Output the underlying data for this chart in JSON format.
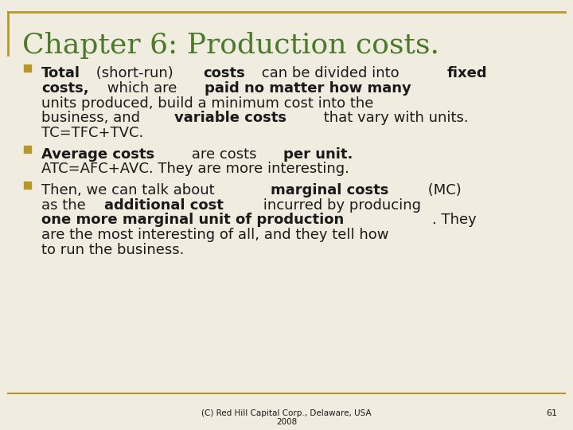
{
  "title": "Chapter 6: Production costs.",
  "title_color": "#4B7A2B",
  "title_fontsize": 26,
  "bg_color": "#F0EDE0",
  "border_color": "#B8972A",
  "bullet_color": "#B8972A",
  "text_color": "#1A1A1A",
  "footer_text": "(C) Red Hill Capital Corp., Delaware, USA\n2008",
  "page_number": "61",
  "bullets": [
    {
      "segments": [
        {
          "text": "Total",
          "bold": true
        },
        {
          "text": " (short-run) ",
          "bold": false
        },
        {
          "text": "costs",
          "bold": true
        },
        {
          "text": " can be divided into ",
          "bold": false
        },
        {
          "text": "fixed\ncosts,",
          "bold": true
        },
        {
          "text": " which are ",
          "bold": false
        },
        {
          "text": "paid no matter how many",
          "bold": true
        },
        {
          "text": "\nunits produced, build a minimum cost into the\nbusiness, and ",
          "bold": false
        },
        {
          "text": "variable costs",
          "bold": true
        },
        {
          "text": " that vary with units.\nTC=TFC+TVC.",
          "bold": false
        }
      ]
    },
    {
      "segments": [
        {
          "text": "Average costs",
          "bold": true
        },
        {
          "text": " are costs ",
          "bold": false
        },
        {
          "text": "per unit.",
          "bold": true
        },
        {
          "text": "\nATC=AFC+AVC. They are more interesting.",
          "bold": false
        }
      ]
    },
    {
      "segments": [
        {
          "text": "Then, we can talk about ",
          "bold": false
        },
        {
          "text": "marginal costs",
          "bold": true
        },
        {
          "text": " (MC)\nas the ",
          "bold": false
        },
        {
          "text": "additional cost",
          "bold": true
        },
        {
          "text": " incurred by producing\n",
          "bold": false
        },
        {
          "text": "one more marginal unit of production",
          "bold": true
        },
        {
          "text": ". They\nare the most interesting of all, and they tell how\nto run the business.",
          "bold": false
        }
      ]
    }
  ]
}
